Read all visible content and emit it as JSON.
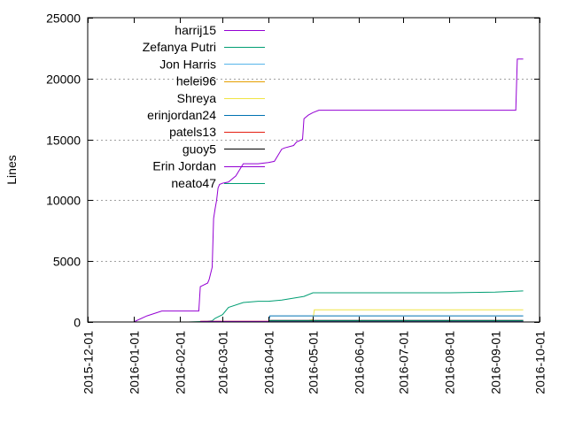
{
  "chart_data": {
    "type": "line",
    "title": "",
    "xlabel": "",
    "ylabel": "Lines",
    "x_axis": "date",
    "xlim": [
      "2015-12-01",
      "2016-10-01"
    ],
    "ylim": [
      0,
      25000
    ],
    "x_ticks": [
      "2015-12-01",
      "2016-01-01",
      "2016-02-01",
      "2016-03-01",
      "2016-04-01",
      "2016-05-01",
      "2016-06-01",
      "2016-07-01",
      "2016-08-01",
      "2016-09-01",
      "2016-10-01"
    ],
    "y_ticks": [
      0,
      5000,
      10000,
      15000,
      20000,
      25000
    ],
    "grid": "horizontal dotted lines at y ticks",
    "legend": "top-left",
    "series": [
      {
        "name": "harrij15",
        "color": "#9400d3",
        "x": [
          "2016-01-01",
          "2016-01-10",
          "2016-01-20",
          "2016-01-25",
          "2016-02-14",
          "2016-02-15",
          "2016-02-20",
          "2016-02-21",
          "2016-02-22",
          "2016-02-23",
          "2016-02-24",
          "2016-02-25",
          "2016-02-26",
          "2016-02-27",
          "2016-02-28",
          "2016-03-01",
          "2016-03-05",
          "2016-03-10",
          "2016-03-15",
          "2016-03-20",
          "2016-03-25",
          "2016-04-01",
          "2016-04-05",
          "2016-04-10",
          "2016-04-12",
          "2016-04-18",
          "2016-04-20",
          "2016-04-24",
          "2016-04-25",
          "2016-04-28",
          "2016-05-01",
          "2016-05-05",
          "2016-09-01",
          "2016-09-15",
          "2016-09-16",
          "2016-09-20"
        ],
        "y": [
          0,
          500,
          900,
          900,
          900,
          2900,
          3200,
          3500,
          4000,
          4500,
          8500,
          9300,
          10000,
          11000,
          11300,
          11400,
          11500,
          12000,
          13000,
          13000,
          13000,
          13100,
          13200,
          14200,
          14300,
          14500,
          14800,
          15000,
          16700,
          17000,
          17200,
          17400,
          17400,
          17400,
          21600,
          21600
        ]
      },
      {
        "name": "Zefanya Putri",
        "color": "#009e73",
        "x": [
          "2016-02-07",
          "2016-02-20",
          "2016-02-23",
          "2016-02-25",
          "2016-03-01",
          "2016-03-05",
          "2016-03-15",
          "2016-03-25",
          "2016-04-01",
          "2016-04-10",
          "2016-04-20",
          "2016-04-25",
          "2016-05-01",
          "2016-06-01",
          "2016-07-01",
          "2016-08-01",
          "2016-09-01",
          "2016-09-20"
        ],
        "y": [
          0,
          50,
          100,
          300,
          600,
          1200,
          1600,
          1700,
          1700,
          1800,
          2000,
          2100,
          2400,
          2400,
          2400,
          2400,
          2450,
          2550
        ]
      },
      {
        "name": "Jon Harris",
        "color": "#56b4e9",
        "x": [
          "2016-04-01",
          "2016-09-20"
        ],
        "y": [
          20,
          20
        ]
      },
      {
        "name": "helei96",
        "color": "#e69f00",
        "x": [
          "2016-04-01",
          "2016-09-20"
        ],
        "y": [
          30,
          30
        ]
      },
      {
        "name": "Shreya",
        "color": "#f0e442",
        "x": [
          "2016-04-25",
          "2016-05-01",
          "2016-05-02",
          "2016-09-20"
        ],
        "y": [
          0,
          200,
          1000,
          1000
        ]
      },
      {
        "name": "erinjordan24",
        "color": "#0072b2",
        "x": [
          "2016-03-01",
          "2016-04-01",
          "2016-04-02",
          "2016-09-20"
        ],
        "y": [
          0,
          0,
          500,
          500
        ]
      },
      {
        "name": "patels13",
        "color": "#e51e10",
        "x": [
          "2016-02-15",
          "2016-09-20"
        ],
        "y": [
          60,
          60
        ]
      },
      {
        "name": "guoy5",
        "color": "#000000",
        "x": [
          "2016-04-01",
          "2016-09-20"
        ],
        "y": [
          130,
          130
        ]
      },
      {
        "name": "Erin Jordan",
        "color": "#9400d3",
        "x": [
          "2016-02-15",
          "2016-09-20"
        ],
        "y": [
          40,
          40
        ]
      },
      {
        "name": "neato47",
        "color": "#009e73",
        "x": [
          "2016-04-01",
          "2016-09-20"
        ],
        "y": [
          90,
          90
        ]
      }
    ]
  }
}
